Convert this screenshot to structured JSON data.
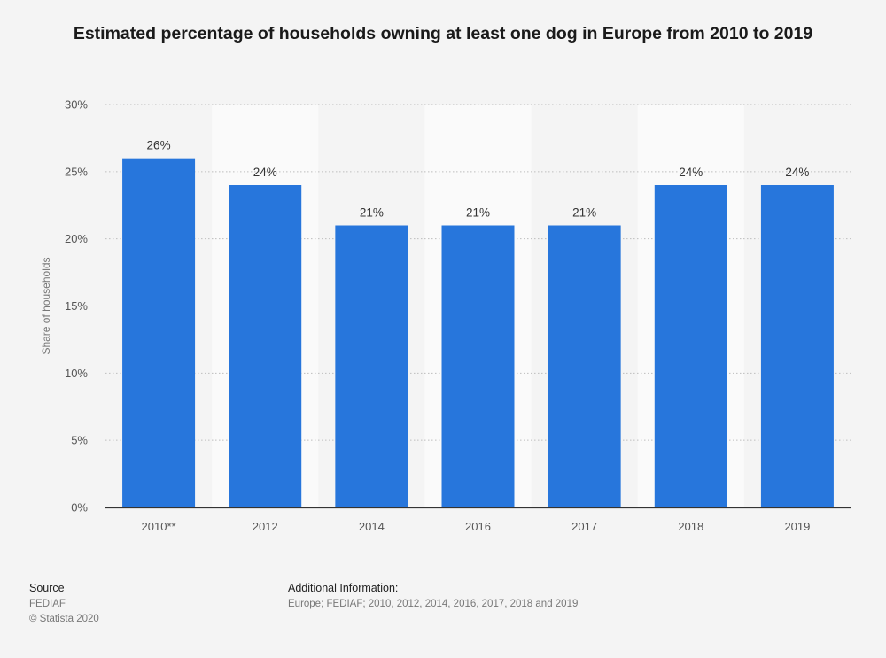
{
  "chart_data": {
    "type": "bar",
    "title": "Estimated percentage of households owning at least one dog in Europe from 2010 to 2019",
    "categories": [
      "2010**",
      "2012",
      "2014",
      "2016",
      "2017",
      "2018",
      "2019"
    ],
    "values": [
      26,
      24,
      21,
      21,
      21,
      24,
      24
    ],
    "data_labels": [
      "26%",
      "24%",
      "21%",
      "21%",
      "21%",
      "24%",
      "24%"
    ],
    "xlabel": "",
    "ylabel": "Share of households",
    "ylim": [
      0,
      30
    ],
    "yticks": [
      0,
      5,
      10,
      15,
      20,
      25,
      30
    ],
    "ytick_labels": [
      "0%",
      "5%",
      "10%",
      "15%",
      "20%",
      "25%",
      "30%"
    ],
    "grid": true,
    "bar_color": "#2776dc"
  },
  "footer": {
    "source_heading": "Source",
    "source_name": "FEDIAF",
    "copyright": "© Statista 2020",
    "info_heading": "Additional Information:",
    "info_text": "Europe; FEDIAF; 2010, 2012, 2014, 2016, 2017, 2018 and 2019"
  }
}
